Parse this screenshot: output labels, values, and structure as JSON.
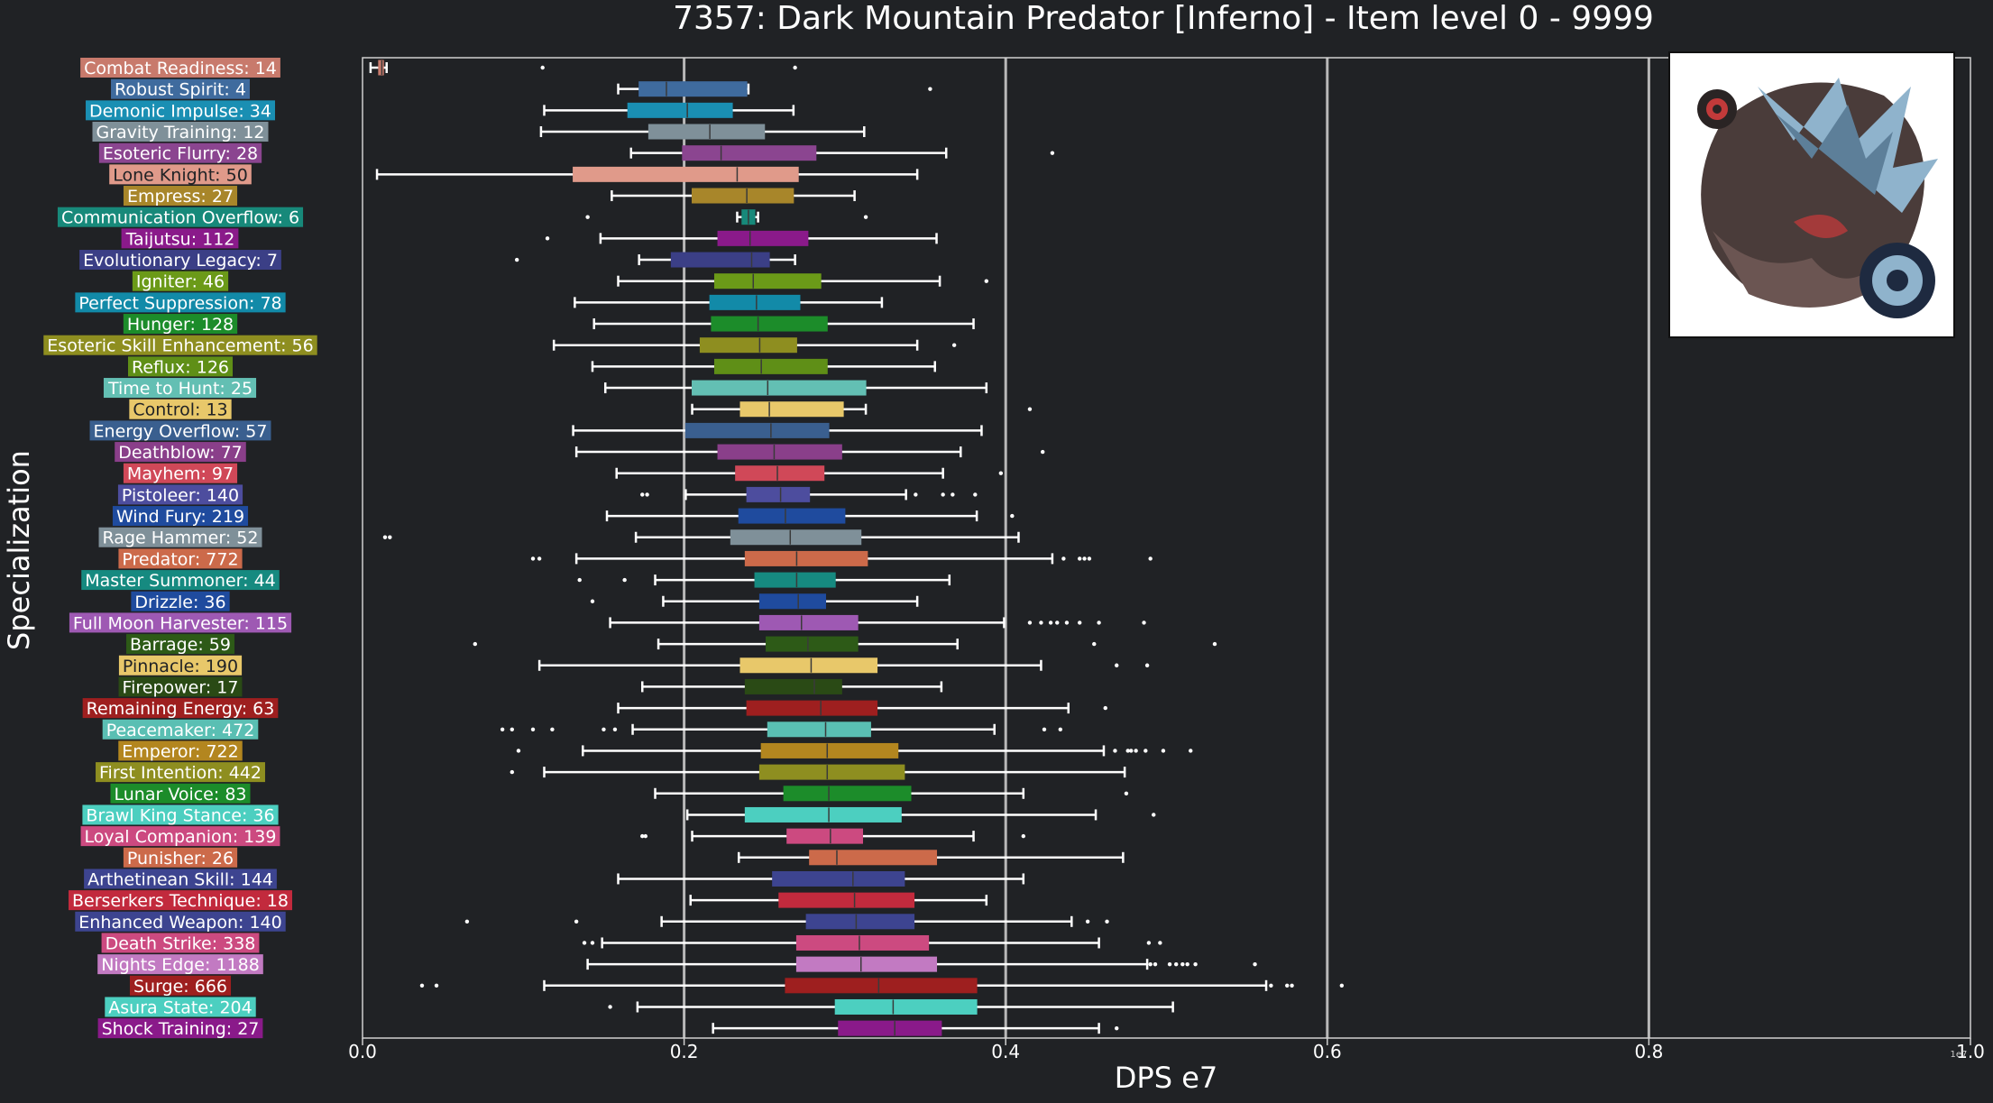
{
  "chart_data": {
    "type": "boxplot",
    "title": "7357: Dark Mountain Predator [Inferno] - Item level 0 - 9999",
    "xlabel": "DPS e7",
    "ylabel": "Specialization",
    "x_exponent_label": "1e7",
    "xlim": [
      0,
      1.0
    ],
    "xticks": [
      "0.0",
      "0.2",
      "0.4",
      "0.6",
      "0.8",
      "1.0"
    ],
    "xtick_values": [
      0,
      0.2,
      0.4,
      0.6,
      0.8,
      1.0
    ],
    "grid": "vertical",
    "image_inset": "top-right",
    "categories": [
      {
        "label": "Combat Readiness: 14",
        "color": "#c87a6c",
        "whislo": 0.005,
        "q1": 0.01,
        "med": 0.012,
        "q3": 0.013,
        "whishi": 0.015,
        "fliers": [
          0.112,
          0.269
        ]
      },
      {
        "label": "Robust Spirit: 4",
        "color": "#3f6b9e",
        "whislo": 0.159,
        "q1": 0.172,
        "med": 0.189,
        "q3": 0.239,
        "whishi": 0.24,
        "fliers": [
          0.353
        ]
      },
      {
        "label": "Demonic Impulse: 34",
        "color": "#1a8fb3",
        "whislo": 0.113,
        "q1": 0.165,
        "med": 0.202,
        "q3": 0.23,
        "whishi": 0.268,
        "fliers": []
      },
      {
        "label": "Gravity Training: 12",
        "color": "#7f9099",
        "whislo": 0.111,
        "q1": 0.178,
        "med": 0.216,
        "q3": 0.25,
        "whishi": 0.312,
        "fliers": []
      },
      {
        "label": "Esoteric Flurry: 28",
        "color": "#8b4590",
        "whislo": 0.167,
        "q1": 0.199,
        "med": 0.223,
        "q3": 0.282,
        "whishi": 0.363,
        "fliers": [
          0.429
        ]
      },
      {
        "label": "Lone Knight: 50",
        "color": "#e09a8a",
        "whislo": 0.009,
        "q1": 0.131,
        "med": 0.233,
        "q3": 0.271,
        "whishi": 0.345,
        "fliers": []
      },
      {
        "label": "Empress: 27",
        "color": "#a8862a",
        "whislo": 0.155,
        "q1": 0.205,
        "med": 0.239,
        "q3": 0.268,
        "whishi": 0.306,
        "fliers": []
      },
      {
        "label": "Communication Overflow: 6",
        "color": "#17897a",
        "whislo": 0.233,
        "q1": 0.236,
        "med": 0.24,
        "q3": 0.244,
        "whishi": 0.246,
        "fliers": [
          0.14,
          0.313
        ]
      },
      {
        "label": "Taijutsu: 112",
        "color": "#8a1a8a",
        "whislo": 0.148,
        "q1": 0.221,
        "med": 0.241,
        "q3": 0.277,
        "whishi": 0.357,
        "fliers": [
          0.115
        ]
      },
      {
        "label": "Evolutionary Legacy: 7",
        "color": "#3b3f86",
        "whislo": 0.172,
        "q1": 0.192,
        "med": 0.242,
        "q3": 0.253,
        "whishi": 0.269,
        "fliers": [
          0.096
        ]
      },
      {
        "label": "Igniter: 46",
        "color": "#6b9a18",
        "whislo": 0.159,
        "q1": 0.219,
        "med": 0.243,
        "q3": 0.285,
        "whishi": 0.359,
        "fliers": [
          0.388
        ]
      },
      {
        "label": "Perfect Suppression: 78",
        "color": "#128aa8",
        "whislo": 0.132,
        "q1": 0.216,
        "med": 0.245,
        "q3": 0.272,
        "whishi": 0.323,
        "fliers": []
      },
      {
        "label": "Hunger: 128",
        "color": "#1c8c2a",
        "whislo": 0.144,
        "q1": 0.217,
        "med": 0.246,
        "q3": 0.289,
        "whishi": 0.38,
        "fliers": []
      },
      {
        "label": "Esoteric Skill Enhancement: 56",
        "color": "#8e8e20",
        "whislo": 0.119,
        "q1": 0.21,
        "med": 0.247,
        "q3": 0.27,
        "whishi": 0.345,
        "fliers": [
          0.368
        ]
      },
      {
        "label": "Reflux: 126",
        "color": "#5f8f17",
        "whislo": 0.143,
        "q1": 0.219,
        "med": 0.248,
        "q3": 0.289,
        "whishi": 0.356,
        "fliers": []
      },
      {
        "label": "Time to Hunt: 25",
        "color": "#63bfb3",
        "whislo": 0.151,
        "q1": 0.205,
        "med": 0.252,
        "q3": 0.313,
        "whishi": 0.388,
        "fliers": []
      },
      {
        "label": "Control: 13",
        "color": "#e8c86a",
        "whislo": 0.205,
        "q1": 0.235,
        "med": 0.253,
        "q3": 0.299,
        "whishi": 0.313,
        "fliers": [
          0.415
        ]
      },
      {
        "label": "Energy Overflow: 57",
        "color": "#3a5f8f",
        "whislo": 0.131,
        "q1": 0.201,
        "med": 0.254,
        "q3": 0.29,
        "whishi": 0.385,
        "fliers": []
      },
      {
        "label": "Deathblow: 77",
        "color": "#8a3f8a",
        "whislo": 0.133,
        "q1": 0.221,
        "med": 0.256,
        "q3": 0.298,
        "whishi": 0.372,
        "fliers": [
          0.423
        ]
      },
      {
        "label": "Mayhem: 97",
        "color": "#d04858",
        "whislo": 0.158,
        "q1": 0.232,
        "med": 0.258,
        "q3": 0.287,
        "whishi": 0.361,
        "fliers": [
          0.397
        ]
      },
      {
        "label": "Pistoleer: 140",
        "color": "#4d4d9e",
        "whislo": 0.201,
        "q1": 0.239,
        "med": 0.26,
        "q3": 0.278,
        "whishi": 0.338,
        "fliers": [
          0.174,
          0.177,
          0.344,
          0.361,
          0.367,
          0.381
        ]
      },
      {
        "label": "Wind Fury: 219",
        "color": "#1f4b9e",
        "whislo": 0.152,
        "q1": 0.234,
        "med": 0.263,
        "q3": 0.3,
        "whishi": 0.382,
        "fliers": [
          0.404
        ]
      },
      {
        "label": "Rage Hammer: 52",
        "color": "#7f9099",
        "whislo": 0.17,
        "q1": 0.229,
        "med": 0.266,
        "q3": 0.31,
        "whishi": 0.408,
        "fliers": [
          0.014,
          0.017
        ]
      },
      {
        "label": "Predator: 772",
        "color": "#cc6a4a",
        "whislo": 0.133,
        "q1": 0.238,
        "med": 0.27,
        "q3": 0.314,
        "whishi": 0.429,
        "fliers": [
          0.106,
          0.11,
          0.436,
          0.446,
          0.449,
          0.452,
          0.49
        ]
      },
      {
        "label": "Master Summoner: 44",
        "color": "#168a80",
        "whislo": 0.182,
        "q1": 0.244,
        "med": 0.27,
        "q3": 0.294,
        "whishi": 0.365,
        "fliers": [
          0.135,
          0.163
        ]
      },
      {
        "label": "Drizzle: 36",
        "color": "#1f4b9e",
        "whislo": 0.187,
        "q1": 0.247,
        "med": 0.271,
        "q3": 0.288,
        "whishi": 0.345,
        "fliers": [
          0.143
        ]
      },
      {
        "label": "Full Moon Harvester: 115",
        "color": "#9e59b3",
        "whislo": 0.154,
        "q1": 0.247,
        "med": 0.273,
        "q3": 0.308,
        "whishi": 0.399,
        "fliers": [
          0.415,
          0.422,
          0.428,
          0.432,
          0.438,
          0.446,
          0.458,
          0.486
        ]
      },
      {
        "label": "Barrage: 59",
        "color": "#2d5a17",
        "whislo": 0.184,
        "q1": 0.251,
        "med": 0.277,
        "q3": 0.308,
        "whishi": 0.37,
        "fliers": [
          0.07,
          0.455,
          0.53
        ]
      },
      {
        "label": "Pinnacle: 190",
        "color": "#e8c86a",
        "whislo": 0.11,
        "q1": 0.235,
        "med": 0.279,
        "q3": 0.32,
        "whishi": 0.422,
        "fliers": [
          0.469,
          0.488
        ]
      },
      {
        "label": "Firepower: 17",
        "color": "#2a4a15",
        "whislo": 0.174,
        "q1": 0.238,
        "med": 0.281,
        "q3": 0.298,
        "whishi": 0.36,
        "fliers": []
      },
      {
        "label": "Remaining Energy: 63",
        "color": "#9e1f1f",
        "whislo": 0.159,
        "q1": 0.239,
        "med": 0.285,
        "q3": 0.32,
        "whishi": 0.439,
        "fliers": [
          0.462
        ]
      },
      {
        "label": "Peacemaker: 472",
        "color": "#5abfb3",
        "whislo": 0.168,
        "q1": 0.252,
        "med": 0.288,
        "q3": 0.316,
        "whishi": 0.393,
        "fliers": [
          0.087,
          0.093,
          0.106,
          0.118,
          0.15,
          0.157,
          0.424,
          0.434
        ]
      },
      {
        "label": "Emperor: 722",
        "color": "#b3861f",
        "whislo": 0.137,
        "q1": 0.248,
        "med": 0.289,
        "q3": 0.333,
        "whishi": 0.461,
        "fliers": [
          0.097,
          0.468,
          0.476,
          0.478,
          0.481,
          0.487,
          0.498,
          0.515
        ]
      },
      {
        "label": "First Intention: 442",
        "color": "#8e8e20",
        "whislo": 0.113,
        "q1": 0.247,
        "med": 0.289,
        "q3": 0.337,
        "whishi": 0.474,
        "fliers": [
          0.093
        ]
      },
      {
        "label": "Lunar Voice: 83",
        "color": "#1c8c2a",
        "whislo": 0.182,
        "q1": 0.262,
        "med": 0.29,
        "q3": 0.341,
        "whishi": 0.411,
        "fliers": [
          0.475
        ]
      },
      {
        "label": "Brawl King Stance: 36",
        "color": "#4ccfc0",
        "whislo": 0.202,
        "q1": 0.238,
        "med": 0.29,
        "q3": 0.335,
        "whishi": 0.456,
        "fliers": [
          0.492
        ]
      },
      {
        "label": "Loyal Companion: 139",
        "color": "#cc4a80",
        "whislo": 0.205,
        "q1": 0.264,
        "med": 0.291,
        "q3": 0.311,
        "whishi": 0.38,
        "fliers": [
          0.174,
          0.176,
          0.411
        ]
      },
      {
        "label": "Punisher: 26",
        "color": "#cc6a4a",
        "whislo": 0.234,
        "q1": 0.278,
        "med": 0.295,
        "q3": 0.357,
        "whishi": 0.473,
        "fliers": []
      },
      {
        "label": "Arthetinean Skill: 144",
        "color": "#3d4490",
        "whislo": 0.159,
        "q1": 0.255,
        "med": 0.305,
        "q3": 0.337,
        "whishi": 0.411,
        "fliers": []
      },
      {
        "label": "Berserkers Technique: 18",
        "color": "#c22a3d",
        "whislo": 0.204,
        "q1": 0.259,
        "med": 0.306,
        "q3": 0.343,
        "whishi": 0.388,
        "fliers": []
      },
      {
        "label": "Enhanced Weapon: 140",
        "color": "#3d4490",
        "whislo": 0.186,
        "q1": 0.276,
        "med": 0.307,
        "q3": 0.343,
        "whishi": 0.441,
        "fliers": [
          0.065,
          0.133,
          0.451,
          0.463
        ]
      },
      {
        "label": "Death Strike: 338",
        "color": "#cc4a80",
        "whislo": 0.149,
        "q1": 0.27,
        "med": 0.309,
        "q3": 0.352,
        "whishi": 0.458,
        "fliers": [
          0.138,
          0.143,
          0.489,
          0.496
        ]
      },
      {
        "label": "Nights Edge: 1188",
        "color": "#c27ac2",
        "whislo": 0.14,
        "q1": 0.27,
        "med": 0.31,
        "q3": 0.357,
        "whishi": 0.488,
        "fliers": [
          0.49,
          0.493,
          0.502,
          0.506,
          0.51,
          0.513,
          0.518,
          0.555
        ]
      },
      {
        "label": "Surge: 666",
        "color": "#9e1f1f",
        "whislo": 0.113,
        "q1": 0.263,
        "med": 0.321,
        "q3": 0.382,
        "whishi": 0.562,
        "fliers": [
          0.037,
          0.046,
          0.565,
          0.575,
          0.578,
          0.609
        ]
      },
      {
        "label": "Asura State: 204",
        "color": "#4ccfc0",
        "whislo": 0.171,
        "q1": 0.294,
        "med": 0.33,
        "q3": 0.382,
        "whishi": 0.504,
        "fliers": [
          0.154
        ]
      },
      {
        "label": "Shock Training: 27",
        "color": "#8a1a8a",
        "whislo": 0.218,
        "q1": 0.296,
        "med": 0.331,
        "q3": 0.36,
        "whishi": 0.458,
        "fliers": [
          0.469
        ]
      }
    ]
  }
}
